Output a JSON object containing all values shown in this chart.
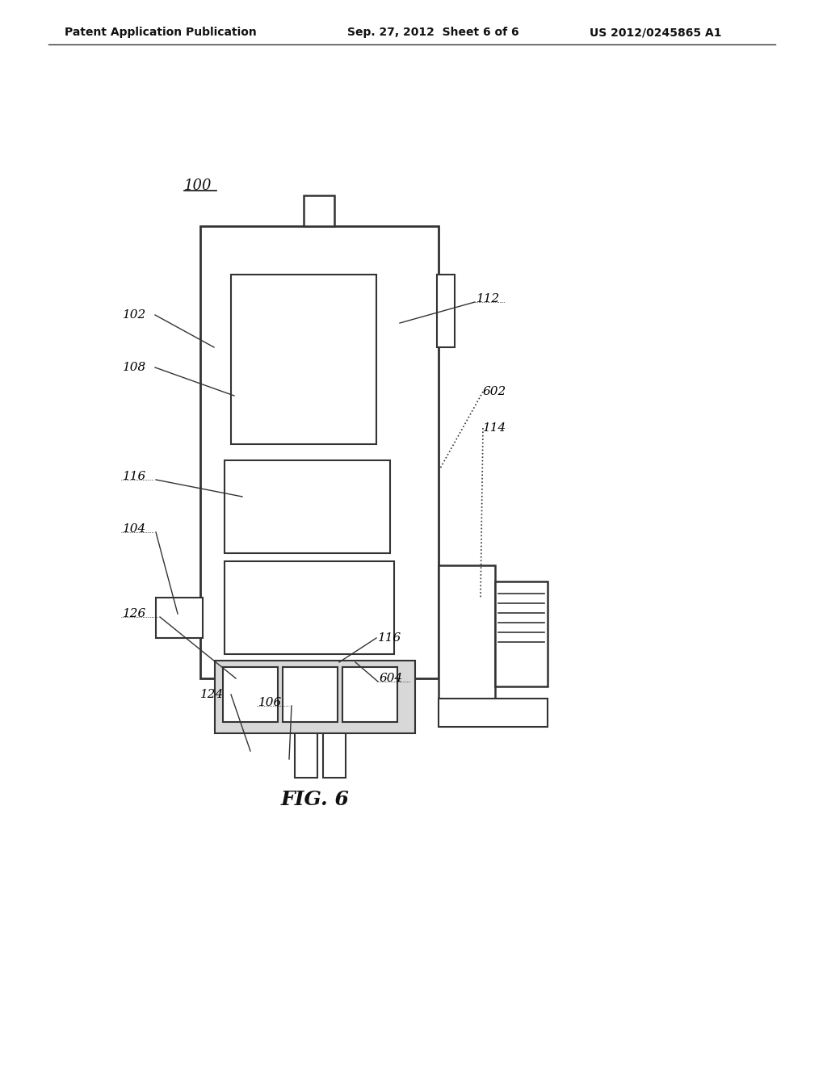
{
  "background_color": "#ffffff",
  "line_color": "#333333",
  "lw": 1.5,
  "header_left": "Patent Application Publication",
  "header_mid": "Sep. 27, 2012  Sheet 6 of 6",
  "header_right": "US 2012/0245865 A1",
  "fig_label": "FIG. 6",
  "ref_100": "100",
  "ref_102": "102",
  "ref_104": "104",
  "ref_106": "106",
  "ref_108": "108",
  "ref_112": "112",
  "ref_114": "114",
  "ref_116a": "116",
  "ref_116b": "116",
  "ref_124": "124",
  "ref_126": "126",
  "ref_602": "602",
  "ref_604": "604"
}
